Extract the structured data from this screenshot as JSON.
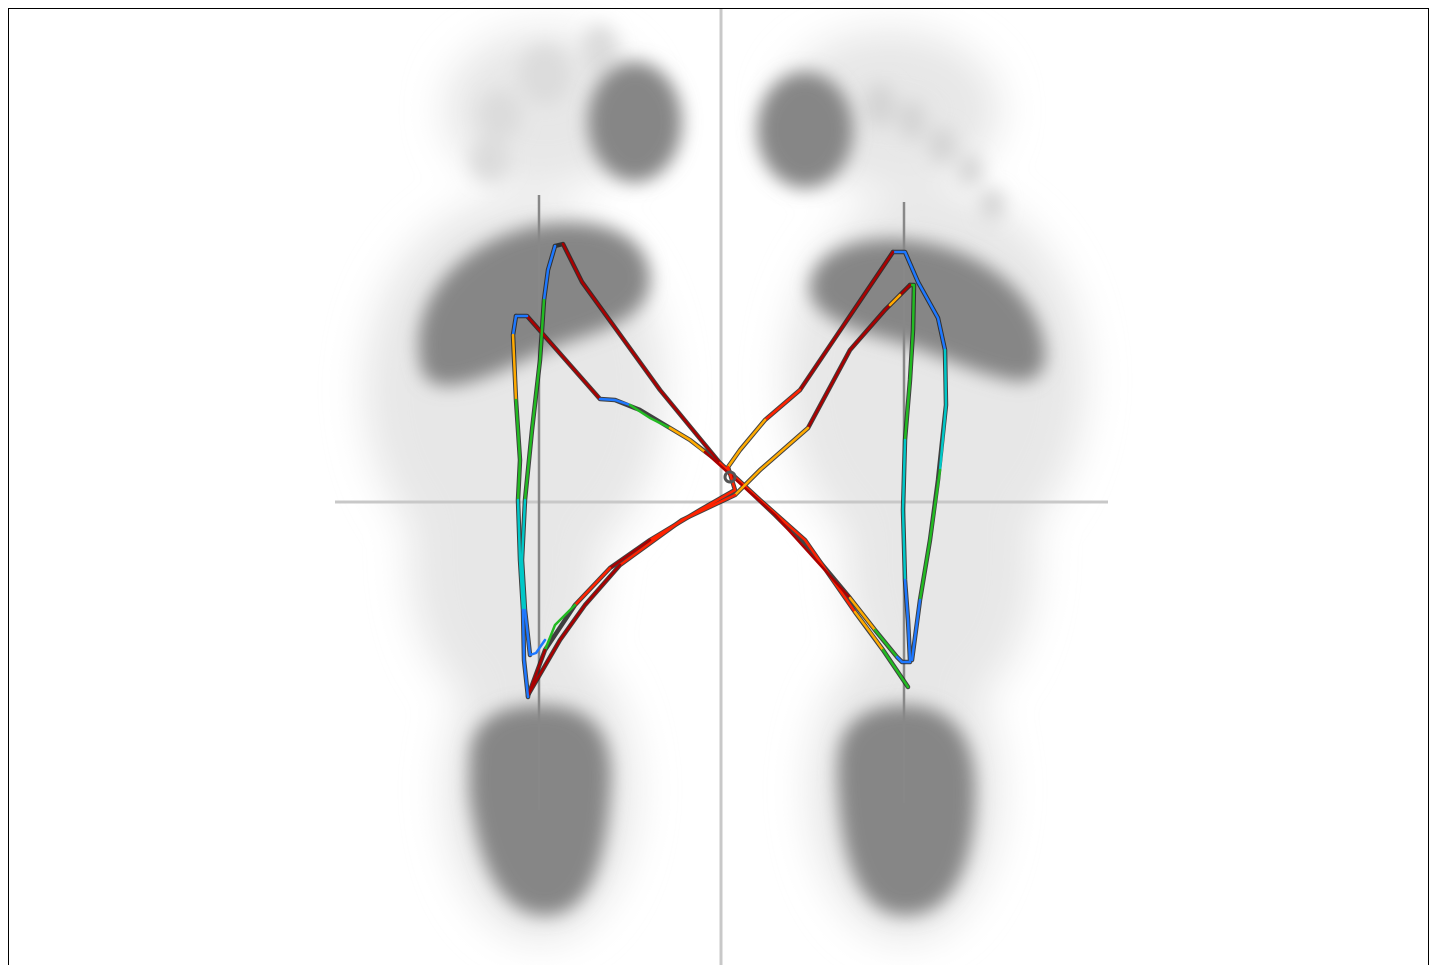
{
  "view": {
    "name": "plantar-pressure-gait-view",
    "background": "#ffffff",
    "frame_color": "#000000",
    "axis_color": "#c8c8c8",
    "foot_axis_color": "#888888",
    "pressure_colors": {
      "low": "#1e78ff",
      "mid_low": "#00c8c8",
      "mid": "#22bb22",
      "mid_high": "#ffaa00",
      "high": "#ff2200",
      "peak": "#aa0000"
    },
    "footprint_color": "#858585",
    "footprint_halo_color": "#e6e6e6",
    "cop_marker_color": "#555555"
  },
  "feet": [
    {
      "side": "left-foot",
      "label": ""
    },
    {
      "side": "right-foot",
      "label": ""
    }
  ]
}
